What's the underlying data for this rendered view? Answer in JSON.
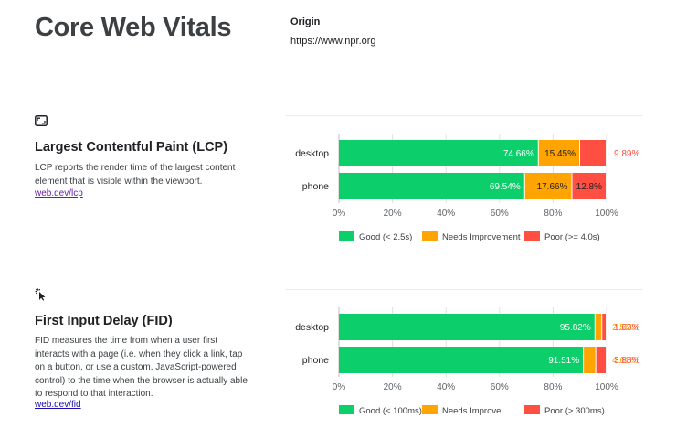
{
  "page": {
    "title": "Core Web Vitals",
    "origin_label": "Origin",
    "origin_value": "https://www.npr.org"
  },
  "colors": {
    "good": "#0cce6b",
    "needs_improvement": "#ffa400",
    "poor": "#ff4e42",
    "axis": "#5f6368",
    "grid": "#e0e0e0"
  },
  "lcp": {
    "icon": "lcp-frame-icon",
    "title": "Largest Contentful Paint (LCP)",
    "description": "LCP reports the render time of the largest content element that is visible within the viewport.",
    "link": "web.dev/lcp"
  },
  "fid": {
    "icon": "fid-pointer-icon",
    "title": "First Input Delay (FID)",
    "description": "FID measures the time from when a user first interacts with a page (i.e. when they click a link, tap on a button, or use a custom, JavaScript-powered control) to the time when the browser is actually able to respond to that interaction.",
    "link": "web.dev/fid"
  },
  "chart_data": [
    {
      "type": "bar",
      "orientation": "horizontal",
      "stacked": true,
      "categories": [
        "desktop",
        "phone"
      ],
      "series": [
        {
          "name": "Good (< 2.5s)",
          "values": [
            74.66,
            69.54
          ],
          "labels": [
            "74.66%",
            "69.54%"
          ]
        },
        {
          "name": "Needs Improvement",
          "values": [
            15.45,
            17.66
          ],
          "labels": [
            "15.45%",
            "17.66%"
          ]
        },
        {
          "name": "Poor (>= 4.0s)",
          "values": [
            9.89,
            12.8
          ],
          "labels": [
            "9.89%",
            "12.8%"
          ]
        }
      ],
      "xlim": [
        0,
        100
      ],
      "xticks": [
        "0%",
        "20%",
        "40%",
        "60%",
        "80%",
        "100%"
      ],
      "grid": true,
      "legend": "bottom"
    },
    {
      "type": "bar",
      "orientation": "horizontal",
      "stacked": true,
      "categories": [
        "desktop",
        "phone"
      ],
      "series": [
        {
          "name": "Good (< 100ms)",
          "values": [
            95.82,
            91.51
          ],
          "labels": [
            "95.82%",
            "91.51%"
          ]
        },
        {
          "name": "Needs Improve...",
          "values": [
            2.55,
            4.61
          ],
          "labels": [
            "2.55%",
            "4.61%"
          ]
        },
        {
          "name": "Poor (> 300ms)",
          "values": [
            1.63,
            3.88
          ],
          "labels": [
            "1.63%",
            "3.88%"
          ]
        }
      ],
      "xlim": [
        0,
        100
      ],
      "xticks": [
        "0%",
        "20%",
        "40%",
        "60%",
        "80%",
        "100%"
      ],
      "grid": true,
      "legend": "bottom"
    }
  ]
}
